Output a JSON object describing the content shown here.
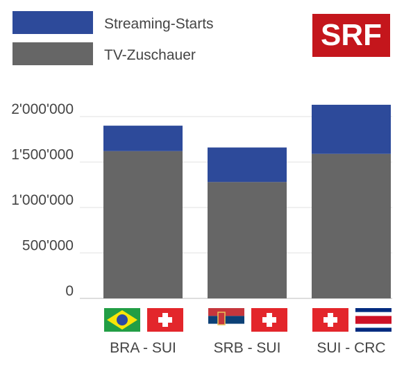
{
  "logo": {
    "text": "SRF",
    "bg": "#c4161c",
    "fg": "#ffffff"
  },
  "chart_data": {
    "type": "bar",
    "stacked": true,
    "categories": [
      "BRA - SUI",
      "SRB - SUI",
      "SUI - CRC"
    ],
    "series": [
      {
        "name": "TV-Zuschauer",
        "color": "#666666",
        "values": [
          1620000,
          1280000,
          1590000
        ]
      },
      {
        "name": "Streaming-Starts",
        "color": "#2d4a9a",
        "values": [
          280000,
          380000,
          540000
        ]
      }
    ],
    "legend_order": [
      "Streaming-Starts",
      "TV-Zuschauer"
    ],
    "legend_position": "top-left",
    "ylim": [
      0,
      2000000
    ],
    "y_ticks": [
      {
        "value": 0,
        "label": "0"
      },
      {
        "value": 500000,
        "label": "500'000"
      },
      {
        "value": 1000000,
        "label": "1'000'000"
      },
      {
        "value": 1500000,
        "label": "1'500'000"
      },
      {
        "value": 2000000,
        "label": "2'000'000"
      }
    ],
    "grid": true,
    "flags": [
      [
        "brazil-flag",
        "switzerland-flag"
      ],
      [
        "serbia-flag",
        "switzerland-flag"
      ],
      [
        "switzerland-flag",
        "costa-rica-flag"
      ]
    ],
    "title": "",
    "xlabel": "",
    "ylabel": ""
  }
}
